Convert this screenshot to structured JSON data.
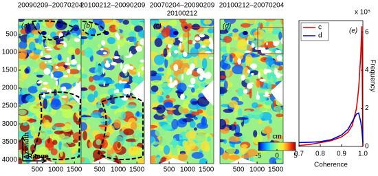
{
  "panels": [
    {
      "label": "(a)",
      "title": [
        "20090209–20070204"
      ]
    },
    {
      "label": "(b)",
      "title": [
        "20100212–20090209"
      ]
    },
    {
      "label": "(c)",
      "title": [
        "20070204–20090209",
        "20100212"
      ]
    },
    {
      "label": "(d)",
      "title": [
        "20100212–20070204"
      ]
    }
  ],
  "map_axes": {
    "xlim": [
      0,
      1700
    ],
    "ylim": [
      80,
      4110
    ],
    "xticks": [
      500,
      1000,
      1500
    ],
    "yticks": [
      500,
      1000,
      1500,
      2000,
      2500,
      3000,
      3500,
      4000
    ],
    "y_arrow_label": "Azimuth",
    "x_arrow_label": "Range"
  },
  "colorbar": {
    "label": "cm",
    "lim": [
      -5,
      5
    ],
    "ticks": [
      -5,
      0,
      5
    ]
  },
  "chart_data": {
    "type": "line",
    "label": "(e)",
    "xlabel": "Coherence",
    "ylabel": "Frequency",
    "y_multiplier": "x 10⁵",
    "x": [
      0.7,
      0.75,
      0.8,
      0.85,
      0.9,
      0.93,
      0.95,
      0.97,
      0.98,
      0.99,
      0.995,
      1.0
    ],
    "series": [
      {
        "name": "c",
        "color": "#e00000",
        "values": [
          0.05,
          0.1,
          0.2,
          0.3,
          0.5,
          0.75,
          1.1,
          2.0,
          3.0,
          4.8,
          6.3,
          0
        ]
      },
      {
        "name": "d",
        "color": "#0000cc",
        "values": [
          0.2,
          0.22,
          0.25,
          0.35,
          0.6,
          0.9,
          1.3,
          1.7,
          1.75,
          1.3,
          0.9,
          0.2
        ]
      }
    ],
    "xlim": [
      0.7,
      1.0
    ],
    "xticks": [
      0.7,
      0.8,
      0.9,
      {
        "value": 1.0,
        "label": "1.0"
      }
    ],
    "ylim": [
      0,
      6.6
    ],
    "yticks": [
      0,
      2,
      4,
      6
    ],
    "legend": "upper left"
  }
}
